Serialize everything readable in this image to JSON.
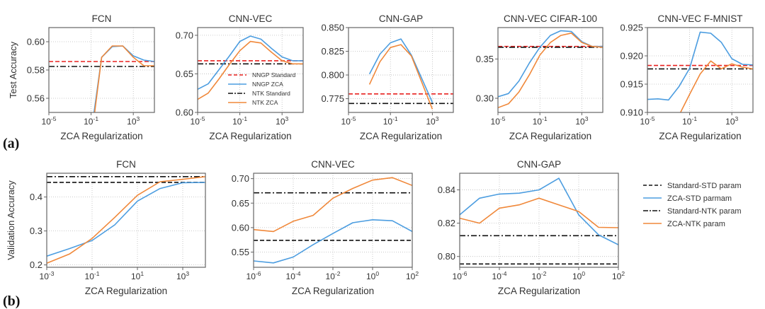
{
  "figure": {
    "row_labels": [
      "(a)",
      "(b)"
    ],
    "colors": {
      "blue": "#4c9de0",
      "orange": "#f0883a",
      "red": "#e8201f",
      "black": "#111111",
      "axis": "#666666",
      "grid": "#bbbbbb"
    }
  },
  "chart_data": [
    {
      "id": "a-fcn",
      "row": "a",
      "type": "line",
      "title": "FCN",
      "xlabel": "ZCA Regularization",
      "ylabel": "Test Accuracy",
      "xscale": "log",
      "xlim_exp": [
        -5,
        5
      ],
      "ylim": [
        0.55,
        0.61
      ],
      "xticks_exp": [
        -5,
        -1,
        3
      ],
      "xtick_labels": [
        "10-5",
        "10-1",
        "103"
      ],
      "yticks": [
        0.56,
        0.58,
        0.6
      ],
      "ytick_labels": [
        "0.56",
        "0.58",
        "0.60"
      ],
      "grid": true,
      "series": [
        {
          "name": "NNGP ZCA",
          "color": "blue",
          "style": "solid",
          "x_exp": [
            -1,
            0,
            1,
            2,
            3,
            4,
            5
          ],
          "y": [
            0.535,
            0.589,
            0.5965,
            0.597,
            0.59,
            0.587,
            0.586
          ]
        },
        {
          "name": "NTK ZCA",
          "color": "orange",
          "style": "solid",
          "x_exp": [
            -1,
            0,
            1,
            2,
            3,
            4,
            5
          ],
          "y": [
            0.53,
            0.589,
            0.597,
            0.597,
            0.589,
            0.583,
            0.583
          ]
        }
      ],
      "hlines": [
        {
          "name": "NNGP Standard",
          "color": "red",
          "style": "dashed",
          "y": 0.586
        },
        {
          "name": "NTK Standard",
          "color": "black",
          "style": "dashdot",
          "y": 0.5825
        }
      ]
    },
    {
      "id": "a-cnn-vec",
      "row": "a",
      "type": "line",
      "title": "CNN-VEC",
      "xlabel": "ZCA Regularization",
      "ylabel": "",
      "xscale": "log",
      "xlim_exp": [
        -5,
        5
      ],
      "ylim": [
        0.6,
        0.71
      ],
      "xticks_exp": [
        -5,
        -1,
        3
      ],
      "xtick_labels": [
        "10-5",
        "10-1",
        "103"
      ],
      "yticks": [
        0.6,
        0.65,
        0.7
      ],
      "ytick_labels": [
        "0.60",
        "0.65",
        "0.70"
      ],
      "grid": true,
      "legend": {
        "placement": "lower-right",
        "entries": [
          {
            "label": "NNGP Standard",
            "color": "red",
            "style": "dashed"
          },
          {
            "label": "NNGP ZCA",
            "color": "blue",
            "style": "solid"
          },
          {
            "label": "NTK Standard",
            "color": "black",
            "style": "dashdot"
          },
          {
            "label": "NTK ZCA",
            "color": "orange",
            "style": "solid"
          }
        ]
      },
      "series": [
        {
          "name": "NNGP ZCA",
          "color": "blue",
          "style": "solid",
          "x_exp": [
            -5,
            -4,
            -3,
            -2,
            -1,
            0,
            1,
            2,
            3,
            4,
            5
          ],
          "y": [
            0.63,
            0.637,
            0.655,
            0.673,
            0.692,
            0.699,
            0.695,
            0.683,
            0.672,
            0.667,
            0.667
          ]
        },
        {
          "name": "NTK ZCA",
          "color": "orange",
          "style": "solid",
          "x_exp": [
            -5,
            -4,
            -3,
            -2,
            -1,
            0,
            1,
            2,
            3,
            4,
            5
          ],
          "y": [
            0.617,
            0.625,
            0.643,
            0.662,
            0.68,
            0.692,
            0.69,
            0.678,
            0.667,
            0.663,
            0.663
          ]
        }
      ],
      "hlines": [
        {
          "name": "NNGP Standard",
          "color": "red",
          "style": "dashed",
          "y": 0.667
        },
        {
          "name": "NTK Standard",
          "color": "black",
          "style": "dashdot",
          "y": 0.663
        }
      ]
    },
    {
      "id": "a-cnn-gap",
      "row": "a",
      "type": "line",
      "title": "CNN-GAP",
      "xlabel": "ZCA Regularization",
      "ylabel": "",
      "xscale": "log",
      "xlim_exp": [
        -5,
        5
      ],
      "ylim": [
        0.7605,
        0.85
      ],
      "xticks_exp": [
        -5,
        -1,
        3
      ],
      "xtick_labels": [
        "10-5",
        "10-1",
        "103"
      ],
      "yticks": [
        0.775,
        0.8,
        0.825,
        0.85
      ],
      "ytick_labels": [
        "0.775",
        "0.800",
        "0.825",
        "0.850"
      ],
      "grid": true,
      "series": [
        {
          "name": "NNGP ZCA",
          "color": "blue",
          "style": "solid",
          "x_exp": [
            -3,
            -2,
            -1,
            0,
            1,
            3
          ],
          "y": [
            0.801,
            0.822,
            0.834,
            0.838,
            0.821,
            0.771
          ]
        },
        {
          "name": "NTK ZCA",
          "color": "orange",
          "style": "solid",
          "x_exp": [
            -3,
            -2,
            -1,
            0,
            1,
            3
          ],
          "y": [
            0.79,
            0.814,
            0.829,
            0.832,
            0.82,
            0.764
          ]
        }
      ],
      "hlines": [
        {
          "name": "NNGP Standard",
          "color": "red",
          "style": "dashed",
          "y": 0.78
        },
        {
          "name": "NTK Standard",
          "color": "black",
          "style": "dashdot",
          "y": 0.77
        }
      ]
    },
    {
      "id": "a-cnn-vec-cifar100",
      "row": "a",
      "type": "line",
      "title": "CNN-VEC CIFAR-100",
      "xlabel": "ZCA Regularization",
      "ylabel": "",
      "xscale": "log",
      "xlim_exp": [
        -5,
        5
      ],
      "ylim": [
        0.282,
        0.39
      ],
      "xticks_exp": [
        -5,
        -1,
        3
      ],
      "xtick_labels": [
        "10-5",
        "10-1",
        "103"
      ],
      "yticks": [
        0.3,
        0.35
      ],
      "ytick_labels": [
        "0.30",
        "0.35"
      ],
      "grid": true,
      "series": [
        {
          "name": "NNGP ZCA",
          "color": "blue",
          "style": "solid",
          "x_exp": [
            -5,
            -4,
            -3,
            -2,
            -1,
            0,
            1,
            2,
            3,
            4,
            5
          ],
          "y": [
            0.302,
            0.306,
            0.322,
            0.345,
            0.365,
            0.38,
            0.386,
            0.385,
            0.372,
            0.366,
            0.366
          ]
        },
        {
          "name": "NTK ZCA",
          "color": "orange",
          "style": "solid",
          "x_exp": [
            -5,
            -4,
            -3,
            -2,
            -1,
            0,
            1,
            2,
            3,
            4,
            5
          ],
          "y": [
            0.288,
            0.293,
            0.308,
            0.33,
            0.355,
            0.371,
            0.38,
            0.383,
            0.371,
            0.366,
            0.365
          ]
        }
      ],
      "hlines": [
        {
          "name": "NNGP Standard",
          "color": "red",
          "style": "dashed",
          "y": 0.366
        },
        {
          "name": "NTK Standard",
          "color": "black",
          "style": "dashdot",
          "y": 0.365
        }
      ]
    },
    {
      "id": "a-cnn-vec-fmnist",
      "row": "a",
      "type": "line",
      "title": "CNN-VEC F-MNIST",
      "xlabel": "ZCA Regularization",
      "ylabel": "",
      "xscale": "log",
      "xlim_exp": [
        -5,
        5
      ],
      "ylim": [
        0.91,
        0.925
      ],
      "xticks_exp": [
        -5,
        -1,
        3
      ],
      "xtick_labels": [
        "10-5",
        "10-1",
        "103"
      ],
      "yticks": [
        0.91,
        0.915,
        0.92,
        0.925
      ],
      "ytick_labels": [
        "0.910",
        "0.915",
        "0.920",
        "0.925"
      ],
      "grid": true,
      "series": [
        {
          "name": "NNGP ZCA",
          "color": "blue",
          "style": "solid",
          "x_exp": [
            -5,
            -4,
            -3,
            -2,
            -1,
            0,
            1,
            2,
            3,
            4,
            5
          ],
          "y": [
            0.9123,
            0.9124,
            0.9122,
            0.9146,
            0.9178,
            0.9242,
            0.924,
            0.9224,
            0.9195,
            0.9185,
            0.9184
          ]
        },
        {
          "name": "NTK ZCA",
          "color": "orange",
          "style": "solid",
          "x_exp": [
            -2,
            -1,
            0,
            1,
            2,
            3,
            4,
            5
          ],
          "y": [
            0.9095,
            0.9132,
            0.9168,
            0.9191,
            0.9177,
            0.9186,
            0.918,
            0.9177
          ]
        }
      ],
      "hlines": [
        {
          "name": "NNGP Standard",
          "color": "red",
          "style": "dashed",
          "y": 0.9183
        },
        {
          "name": "NTK Standard",
          "color": "black",
          "style": "dashdot",
          "y": 0.9177
        }
      ]
    },
    {
      "id": "b-fcn",
      "row": "b",
      "type": "line",
      "title": "FCN",
      "xlabel": "ZCA Regularization",
      "ylabel": "Validation Accuracy",
      "xscale": "log",
      "xlim_exp": [
        -3,
        4
      ],
      "ylim": [
        0.193,
        0.47
      ],
      "xticks_exp": [
        -3,
        -1,
        1,
        3
      ],
      "xtick_labels": [
        "10-3",
        "10-1",
        "101",
        "103"
      ],
      "yticks": [
        0.2,
        0.3,
        0.4
      ],
      "ytick_labels": [
        "0.2",
        "0.3",
        "0.4"
      ],
      "grid": true,
      "series": [
        {
          "name": "ZCA-STD parmam",
          "color": "blue",
          "style": "solid",
          "x_exp": [
            -3,
            -2,
            -1,
            0,
            1,
            2,
            3,
            4
          ],
          "y": [
            0.226,
            0.248,
            0.272,
            0.318,
            0.388,
            0.425,
            0.442,
            0.443
          ]
        },
        {
          "name": "ZCA-NTK param",
          "color": "orange",
          "style": "solid",
          "x_exp": [
            -3,
            -2,
            -1,
            0,
            1,
            2,
            3,
            4
          ],
          "y": [
            0.205,
            0.232,
            0.278,
            0.34,
            0.405,
            0.445,
            0.452,
            0.46
          ]
        }
      ],
      "hlines": [
        {
          "name": "Standard-STD param",
          "color": "black",
          "style": "dashed",
          "y": 0.443
        },
        {
          "name": "Standard-NTK param",
          "color": "black",
          "style": "dashdot",
          "y": 0.46
        }
      ]
    },
    {
      "id": "b-cnn-vec",
      "row": "b",
      "type": "line",
      "title": "CNN-VEC",
      "xlabel": "ZCA Regularization",
      "ylabel": "",
      "xscale": "log",
      "xlim_exp": [
        -6,
        2
      ],
      "ylim": [
        0.519,
        0.711
      ],
      "xticks_exp": [
        -6,
        -4,
        -2,
        0,
        2
      ],
      "xtick_labels": [
        "10-6",
        "10-4",
        "10-2",
        "100",
        "102"
      ],
      "yticks": [
        0.55,
        0.6,
        0.65,
        0.7
      ],
      "ytick_labels": [
        "0.55",
        "0.60",
        "0.65",
        "0.70"
      ],
      "grid": true,
      "series": [
        {
          "name": "ZCA-STD parmam",
          "color": "blue",
          "style": "solid",
          "x_exp": [
            -6,
            -5,
            -4,
            -3,
            -2,
            -1,
            0,
            1,
            2
          ],
          "y": [
            0.532,
            0.528,
            0.54,
            0.565,
            0.588,
            0.61,
            0.616,
            0.614,
            0.592
          ]
        },
        {
          "name": "ZCA-NTK param",
          "color": "orange",
          "style": "solid",
          "x_exp": [
            -6,
            -5,
            -4,
            -3,
            -2,
            -1,
            0,
            1,
            2
          ],
          "y": [
            0.596,
            0.592,
            0.613,
            0.625,
            0.66,
            0.68,
            0.697,
            0.702,
            0.686
          ]
        }
      ],
      "hlines": [
        {
          "name": "Standard-STD param",
          "color": "black",
          "style": "dashed",
          "y": 0.574
        },
        {
          "name": "Standard-NTK param",
          "color": "black",
          "style": "dashdot",
          "y": 0.671
        }
      ]
    },
    {
      "id": "b-cnn-gap",
      "row": "b",
      "type": "line",
      "title": "CNN-GAP",
      "xlabel": "ZCA Regularization",
      "ylabel": "",
      "xscale": "log",
      "xlim_exp": [
        -6,
        2
      ],
      "ylim": [
        0.7935,
        0.85
      ],
      "xticks_exp": [
        -6,
        -4,
        -2,
        0,
        2
      ],
      "xtick_labels": [
        "10-6",
        "10-4",
        "10-2",
        "100",
        "102"
      ],
      "yticks": [
        0.8,
        0.82,
        0.84
      ],
      "ytick_labels": [
        "0.80",
        "0.82",
        "0.84"
      ],
      "grid": true,
      "legend": {
        "placement": "outside-right",
        "entries": [
          {
            "label": "Standard-STD param",
            "color": "black",
            "style": "dashed"
          },
          {
            "label": "ZCA-STD parmam",
            "color": "blue",
            "style": "solid"
          },
          {
            "label": "Standard-NTK param",
            "color": "black",
            "style": "dashdot"
          },
          {
            "label": "ZCA-NTK param",
            "color": "orange",
            "style": "solid"
          }
        ]
      },
      "series": [
        {
          "name": "ZCA-STD parmam",
          "color": "blue",
          "style": "solid",
          "x_exp": [
            -6,
            -5,
            -4,
            -3,
            -2,
            -1,
            0,
            1,
            2
          ],
          "y": [
            0.825,
            0.835,
            0.8375,
            0.838,
            0.84,
            0.847,
            0.825,
            0.813,
            0.807
          ]
        },
        {
          "name": "ZCA-NTK param",
          "color": "orange",
          "style": "solid",
          "x_exp": [
            -6,
            -5,
            -4,
            -3,
            -2,
            -1,
            0,
            1,
            2
          ],
          "y": [
            0.823,
            0.82,
            0.829,
            0.831,
            0.835,
            0.831,
            0.827,
            0.8175,
            0.8173
          ]
        }
      ],
      "hlines": [
        {
          "name": "Standard-STD param",
          "color": "black",
          "style": "dashed",
          "y": 0.7955
        },
        {
          "name": "Standard-NTK param",
          "color": "black",
          "style": "dashdot",
          "y": 0.8125
        }
      ]
    }
  ]
}
